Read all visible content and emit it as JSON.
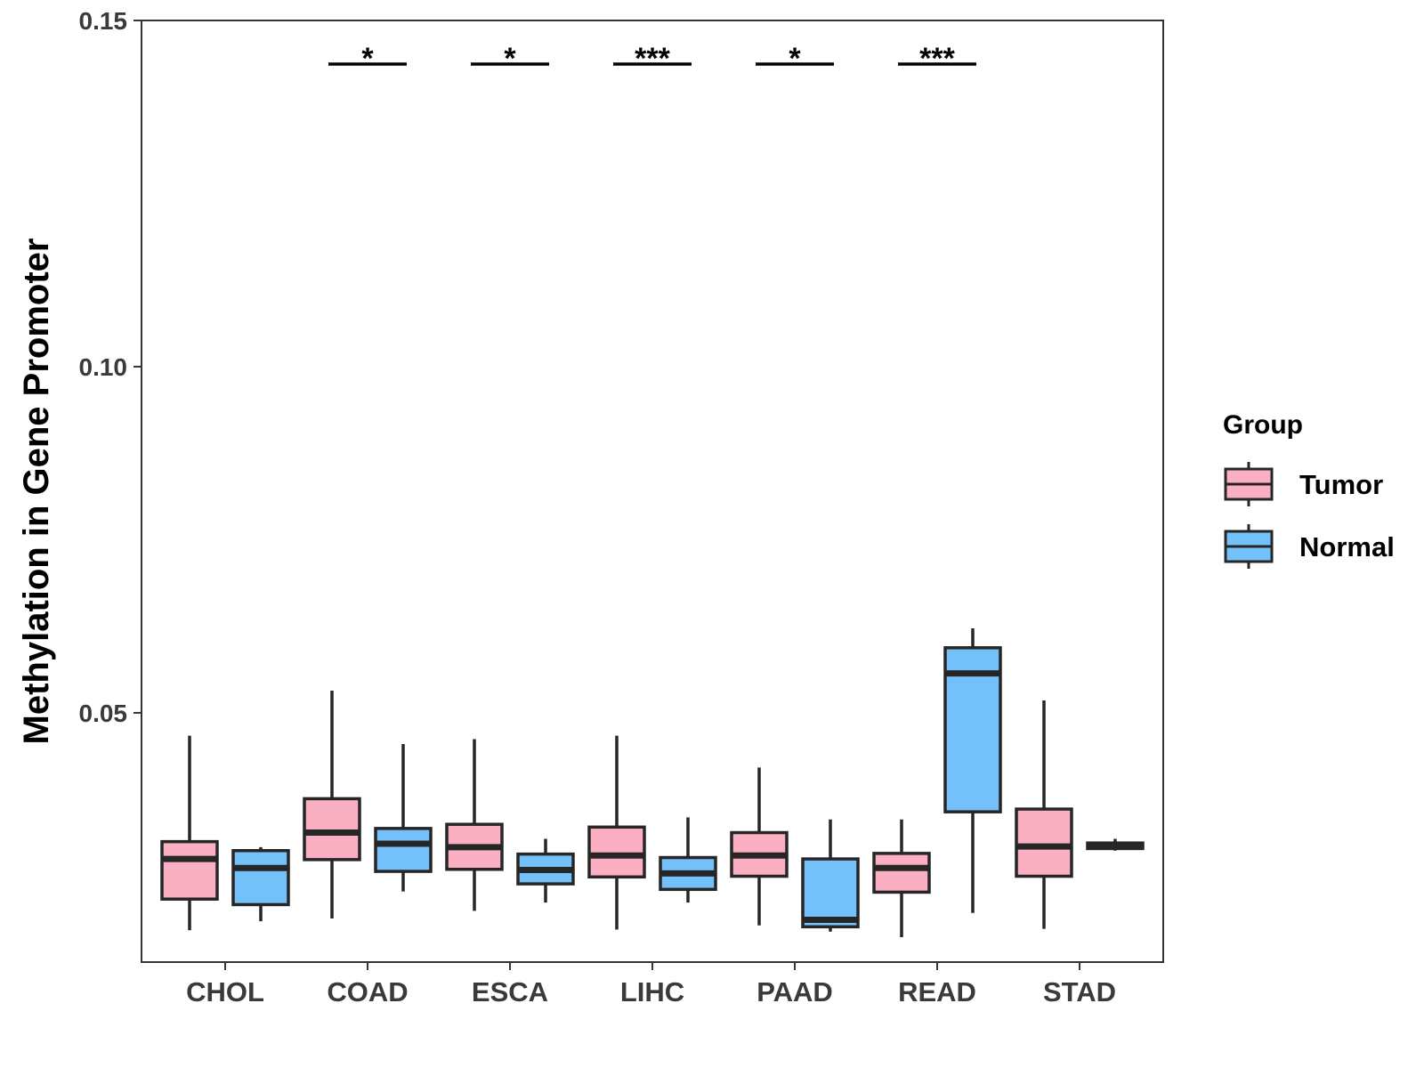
{
  "chart_data": {
    "type": "boxplot",
    "ylabel": "Methylation in Gene Promoter",
    "xlabel": "",
    "ylim": [
      0.014,
      0.15
    ],
    "yticks": [
      {
        "value": 0.05,
        "label": "0.05"
      },
      {
        "value": 0.1,
        "label": "0.10"
      },
      {
        "value": 0.15,
        "label": "0.15"
      }
    ],
    "categories": [
      "CHOL",
      "COAD",
      "ESCA",
      "LIHC",
      "PAAD",
      "READ",
      "STAD"
    ],
    "legend": {
      "title": "Group",
      "position": "right",
      "entries": [
        {
          "name": "Tumor",
          "color": "#fbafc2"
        },
        {
          "name": "Normal",
          "color": "#74c1fa"
        }
      ]
    },
    "series": [
      {
        "name": "Tumor",
        "color": "#fbafc2",
        "boxes": [
          {
            "category": "CHOL",
            "min": 0.0186,
            "q1": 0.0231,
            "median": 0.0289,
            "q3": 0.0314,
            "max": 0.0467
          },
          {
            "category": "COAD",
            "min": 0.0203,
            "q1": 0.0288,
            "median": 0.0327,
            "q3": 0.0376,
            "max": 0.0532
          },
          {
            "category": "ESCA",
            "min": 0.0214,
            "q1": 0.0274,
            "median": 0.0306,
            "q3": 0.0339,
            "max": 0.0462
          },
          {
            "category": "LIHC",
            "min": 0.0187,
            "q1": 0.0263,
            "median": 0.0294,
            "q3": 0.0335,
            "max": 0.0467
          },
          {
            "category": "PAAD",
            "min": 0.0193,
            "q1": 0.0264,
            "median": 0.0294,
            "q3": 0.0327,
            "max": 0.0421
          },
          {
            "category": "READ",
            "min": 0.0176,
            "q1": 0.0241,
            "median": 0.0276,
            "q3": 0.0297,
            "max": 0.0346
          },
          {
            "category": "STAD",
            "min": 0.0188,
            "q1": 0.0264,
            "median": 0.0307,
            "q3": 0.0361,
            "max": 0.0518
          }
        ]
      },
      {
        "name": "Normal",
        "color": "#74c1fa",
        "boxes": [
          {
            "category": "CHOL",
            "min": 0.0199,
            "q1": 0.0223,
            "median": 0.0276,
            "q3": 0.0301,
            "max": 0.0306
          },
          {
            "category": "COAD",
            "min": 0.0242,
            "q1": 0.0271,
            "median": 0.0311,
            "q3": 0.0333,
            "max": 0.0455
          },
          {
            "category": "ESCA",
            "min": 0.0226,
            "q1": 0.0253,
            "median": 0.0273,
            "q3": 0.0296,
            "max": 0.0318
          },
          {
            "category": "LIHC",
            "min": 0.0226,
            "q1": 0.0245,
            "median": 0.0268,
            "q3": 0.0291,
            "max": 0.0349
          },
          {
            "category": "PAAD",
            "min": 0.0184,
            "q1": 0.0191,
            "median": 0.0201,
            "q3": 0.0289,
            "max": 0.0346
          },
          {
            "category": "READ",
            "min": 0.0211,
            "q1": 0.0357,
            "median": 0.0557,
            "q3": 0.0594,
            "max": 0.0622
          },
          {
            "category": "STAD",
            "min": 0.0301,
            "q1": 0.0304,
            "median": 0.0308,
            "q3": 0.0312,
            "max": 0.0318
          }
        ]
      }
    ],
    "annotations": [
      {
        "category": "COAD",
        "label": "*"
      },
      {
        "category": "ESCA",
        "label": "*"
      },
      {
        "category": "LIHC",
        "label": "***"
      },
      {
        "category": "PAAD",
        "label": "*"
      },
      {
        "category": "READ",
        "label": "***"
      }
    ],
    "annotation_y": 0.1437,
    "grid": false
  }
}
